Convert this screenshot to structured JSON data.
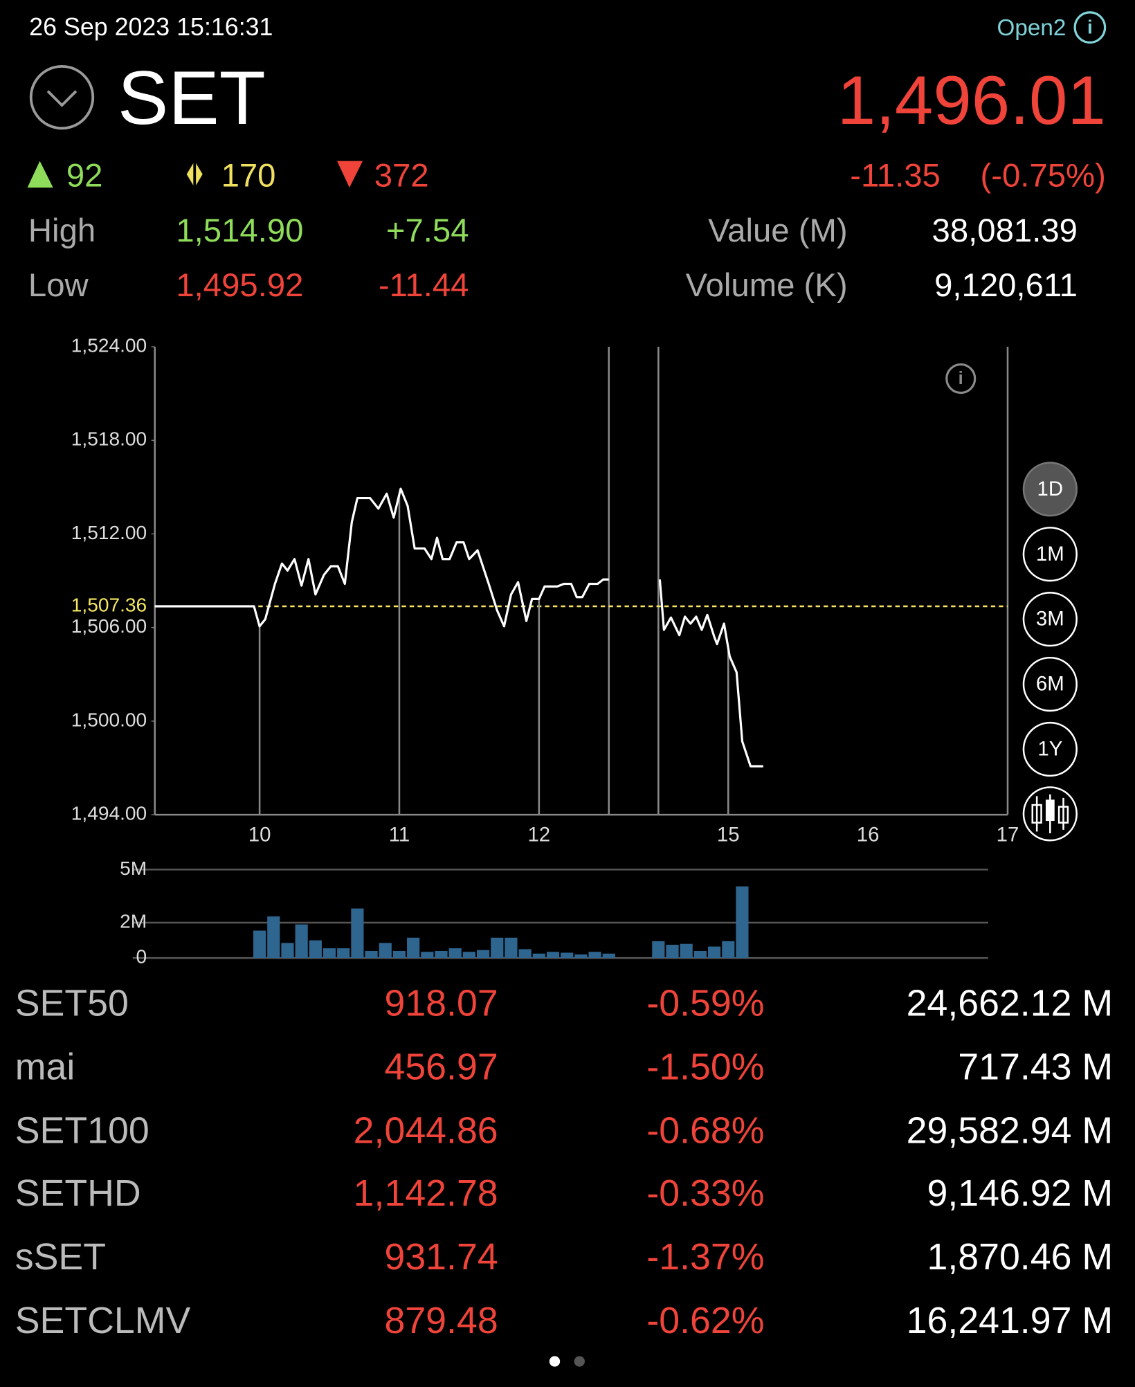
{
  "header": {
    "timestamp": "26 Sep 2023 15:16:31",
    "status": "Open2",
    "symbol": "SET",
    "price": "1,496.01",
    "change": "-11.35",
    "change_percent": "(-0.75%)"
  },
  "breadth": {
    "advance": "92",
    "unchanged": "170",
    "decline": "372"
  },
  "stats": [
    {
      "label": "High",
      "value": "1,514.90",
      "change": "+7.54"
    },
    {
      "label": "Low",
      "value": "1,495.92",
      "change": "-11.44"
    }
  ],
  "totals": [
    {
      "label": "Value (M)",
      "value": "38,081.39"
    },
    {
      "label": "Volume (K)",
      "value": "9,120,611"
    }
  ],
  "chart_data": [
    {
      "type": "line",
      "color": "#ffffff",
      "x": [
        9.25,
        9.96,
        10.0,
        10.04,
        10.11,
        10.16,
        10.2,
        10.25,
        10.3,
        10.35,
        10.4,
        10.46,
        10.51,
        10.56,
        10.61,
        10.66,
        10.7,
        10.79,
        10.85,
        10.91,
        10.96,
        11.01,
        11.06,
        11.11,
        11.18,
        11.23,
        11.27,
        11.31,
        11.36,
        11.41,
        11.46,
        11.5,
        11.56,
        11.64,
        11.7,
        11.75,
        11.8,
        11.85,
        11.91,
        11.95,
        12.0,
        12.04,
        12.13,
        12.18,
        12.23,
        12.27,
        12.31,
        12.36,
        12.42,
        12.46,
        12.5,
        14.51,
        14.54,
        14.59,
        14.65,
        14.69,
        14.73,
        14.77,
        14.81,
        14.85,
        14.9,
        14.92,
        14.97,
        15.01,
        15.06,
        15.1,
        15.16,
        15.25
      ],
      "values": [
        1507.36,
        1507.36,
        1506.08,
        1506.53,
        1508.8,
        1510.1,
        1509.65,
        1510.39,
        1508.69,
        1510.39,
        1508.12,
        1509.37,
        1509.93,
        1509.93,
        1508.8,
        1512.77,
        1514.3,
        1514.3,
        1513.62,
        1514.58,
        1513.05,
        1514.9,
        1513.79,
        1511.07,
        1511.07,
        1510.39,
        1511.75,
        1510.39,
        1510.39,
        1511.46,
        1511.46,
        1510.39,
        1510.95,
        1508.8,
        1507.1,
        1506.08,
        1508.12,
        1508.91,
        1506.42,
        1507.83,
        1507.83,
        1508.63,
        1508.63,
        1508.8,
        1508.8,
        1507.95,
        1507.95,
        1508.8,
        1508.8,
        1509.08,
        1509.08,
        1509.08,
        1505.85,
        1506.64,
        1505.51,
        1506.7,
        1506.25,
        1506.7,
        1505.85,
        1506.81,
        1505.4,
        1504.94,
        1506.25,
        1504.15,
        1503.13,
        1498.7,
        1497.11,
        1497.11
      ],
      "xlim": [
        9.25,
        17
      ],
      "xticks": [
        10,
        11,
        12,
        15,
        16,
        17
      ],
      "session_break": [
        12.5,
        14.5
      ],
      "ylim": [
        1494,
        1524
      ],
      "yticks": [
        {
          "value": 1494,
          "label": "1,494.00"
        },
        {
          "value": 1500,
          "label": "1,500.00"
        },
        {
          "value": 1506,
          "label": "1,506.00"
        },
        {
          "value": 1512,
          "label": "1,512.00"
        },
        {
          "value": 1518,
          "label": "1,518.00"
        },
        {
          "value": 1524,
          "label": "1,524.00"
        }
      ],
      "reference": {
        "value": 1507.36,
        "label": "1,507.36",
        "color": "#f5e663"
      }
    },
    {
      "type": "bar",
      "color": "#2f6690",
      "x": [
        10.0,
        10.1,
        10.2,
        10.3,
        10.4,
        10.5,
        10.6,
        10.7,
        10.8,
        10.9,
        11.0,
        11.1,
        11.2,
        11.3,
        11.4,
        11.5,
        11.6,
        11.7,
        11.8,
        11.9,
        12.0,
        12.1,
        12.2,
        12.3,
        12.4,
        12.5,
        14.5,
        14.6,
        14.7,
        14.8,
        14.9,
        15.0,
        15.1
      ],
      "values": [
        1550000,
        2350000,
        850000,
        1900000,
        1000000,
        550000,
        550000,
        2800000,
        400000,
        850000,
        400000,
        1150000,
        350000,
        400000,
        550000,
        350000,
        450000,
        1150000,
        1150000,
        500000,
        250000,
        350000,
        300000,
        200000,
        350000,
        250000,
        950000,
        750000,
        800000,
        400000,
        650000,
        950000,
        4050000
      ],
      "ylim": [
        0,
        5000000
      ],
      "yticks": [
        0,
        {
          "value": 2000000,
          "label": "2M"
        },
        {
          "value": 5000000,
          "label": "5M"
        }
      ]
    }
  ],
  "periods": [
    "1D",
    "1M",
    "3M",
    "6M",
    "1Y"
  ],
  "selected_period": "1D",
  "indices": {
    "rows": [
      [
        "SET50",
        "918.07",
        "-0.59%",
        "24,662.12 M"
      ],
      [
        "mai",
        "456.97",
        "-1.50%",
        "717.43 M"
      ],
      [
        "SET100",
        "2,044.86",
        "-0.68%",
        "29,582.94 M"
      ],
      [
        "SETHD",
        "1,142.78",
        "-0.33%",
        "9,146.92 M"
      ],
      [
        "sSET",
        "931.74",
        "-1.37%",
        "1,870.46 M"
      ],
      [
        "SETCLMV",
        "879.48",
        "-0.62%",
        "16,241.97 M"
      ]
    ]
  }
}
